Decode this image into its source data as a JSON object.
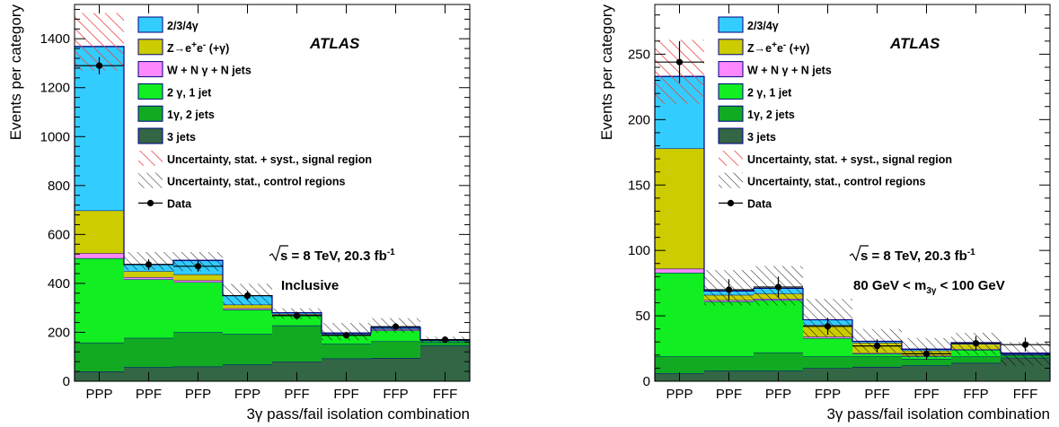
{
  "chart_data": [
    {
      "type": "bar",
      "stacked": true,
      "categories": [
        "PPP",
        "PPF",
        "PFP",
        "FPP",
        "PFF",
        "FPF",
        "FFP",
        "FFF"
      ],
      "ylabel": "Events per category",
      "xlabel": "3γ pass/fail isolation combination",
      "ylim": [
        0,
        1540
      ],
      "yticks": [
        0,
        200,
        400,
        600,
        800,
        1000,
        1200,
        1400
      ],
      "atlas_label": "ATLAS",
      "energy_text": "s = 8 TeV, 20.3 fb",
      "energy_sup": "-1",
      "region_text": "Inclusive",
      "series": [
        {
          "name": "3 jets",
          "values": [
            40,
            57,
            60,
            68,
            80,
            93,
            95,
            145
          ]
        },
        {
          "name": "1γ, 2 jets",
          "values": [
            118,
            120,
            140,
            125,
            148,
            60,
            68,
            15
          ]
        },
        {
          "name": "2 γ, 1 jet",
          "values": [
            345,
            240,
            205,
            100,
            40,
            35,
            45,
            6
          ]
        },
        {
          "name": "W + N γ + N jets",
          "values": [
            20,
            8,
            7,
            5,
            3,
            2,
            4,
            1
          ]
        },
        {
          "name": "Z→e⁺e⁻ (+γ)",
          "values": [
            175,
            25,
            25,
            15,
            4,
            3,
            3,
            1
          ]
        },
        {
          "name": "2/3/4γ",
          "values": [
            670,
            27,
            57,
            37,
            5,
            4,
            5,
            2
          ]
        }
      ],
      "signal_band": {
        "lo": 1270,
        "hi": 1505
      },
      "control_band": {
        "lo": [
          0,
          455,
          450,
          310,
          255,
          168,
          198,
          160
        ],
        "hi": [
          0,
          528,
          528,
          398,
          298,
          238,
          258,
          182
        ]
      },
      "data": {
        "values": [
          1290,
          477,
          470,
          350,
          268,
          188,
          223,
          170
        ],
        "errors": [
          35,
          22,
          22,
          19,
          16,
          14,
          15,
          13
        ]
      }
    },
    {
      "type": "bar",
      "stacked": true,
      "categories": [
        "PPP",
        "PPF",
        "PFP",
        "FPP",
        "PFF",
        "FPF",
        "FFP",
        "FFF"
      ],
      "ylabel": "Events per category",
      "xlabel": "3γ pass/fail isolation combination",
      "ylim": [
        0,
        288
      ],
      "yticks": [
        0,
        50,
        100,
        150,
        200,
        250
      ],
      "atlas_label": "ATLAS",
      "energy_text": "s = 8 TeV, 20.3 fb",
      "energy_sup": "-1",
      "region_text": "80 GeV < m",
      "region_sub": "3γ",
      "region_tail": " < 100 GeV",
      "series": [
        {
          "name": "3 jets",
          "values": [
            6,
            8,
            8,
            10,
            11,
            12,
            14,
            18
          ]
        },
        {
          "name": "1γ, 2 jets",
          "values": [
            13,
            11,
            14,
            9,
            8,
            5,
            5,
            2
          ]
        },
        {
          "name": "2 γ, 1 jet",
          "values": [
            64,
            42,
            40,
            14,
            2,
            2,
            5,
            0.5
          ]
        },
        {
          "name": "W + N γ + N jets",
          "values": [
            3,
            1,
            1,
            1,
            0.5,
            0.5,
            0.5,
            0.3
          ]
        },
        {
          "name": "Z→e⁺e⁻ (+γ)",
          "values": [
            92,
            4,
            4,
            9,
            8,
            4,
            4,
            0.2
          ]
        },
        {
          "name": "2/3/4γ",
          "values": [
            55,
            3,
            4,
            4,
            1,
            1,
            1,
            0.5
          ]
        }
      ],
      "signal_band": {
        "lo": 212,
        "hi": 261
      },
      "control_band": {
        "lo": [
          0,
          58,
          58,
          34,
          22,
          18,
          20,
          12
        ],
        "hi": [
          0,
          85,
          88,
          63,
          40,
          33,
          37,
          30
        ]
      },
      "data": {
        "values": [
          244,
          70,
          72,
          42,
          27,
          21,
          29,
          28
        ],
        "errors": [
          16,
          8,
          8,
          6.5,
          5,
          4.5,
          5.5,
          5.3
        ]
      }
    }
  ],
  "legend": [
    {
      "key": "s5",
      "label": "2/3/4γ",
      "color": "#33ccff",
      "kind": "fill"
    },
    {
      "key": "s4",
      "label": "Z→e",
      "sup": "+",
      "mid": "e",
      "sup2": "-",
      "tail": " (+γ)",
      "color": "#cccc00",
      "kind": "fill"
    },
    {
      "key": "s3",
      "label": "W + N γ + N jets",
      "color": "#ff88ff",
      "kind": "fill"
    },
    {
      "key": "s2",
      "label": "2 γ, 1 jet",
      "color": "#11ee22",
      "kind": "fill"
    },
    {
      "key": "s1",
      "label": "1γ, 2 jets",
      "color": "#11aa22",
      "kind": "fill"
    },
    {
      "key": "s0",
      "label": "3 jets",
      "color": "#336644",
      "kind": "fill"
    },
    {
      "key": "sig",
      "label": "Uncertainty, stat. + syst., signal region",
      "color": "#ee4444",
      "kind": "hatch-red"
    },
    {
      "key": "ctl",
      "label": "Uncertainty, stat., control regions",
      "color": "#000000",
      "kind": "hatch-black"
    },
    {
      "key": "dat",
      "label": "Data",
      "color": "#000000",
      "kind": "marker"
    }
  ],
  "colors": {
    "series": [
      "#336644",
      "#11aa22",
      "#11ee22",
      "#ff88ff",
      "#cccc00",
      "#33ccff"
    ],
    "edge": "#000080",
    "hatch_red": "#ee4444",
    "hatch_black": "#000000"
  }
}
